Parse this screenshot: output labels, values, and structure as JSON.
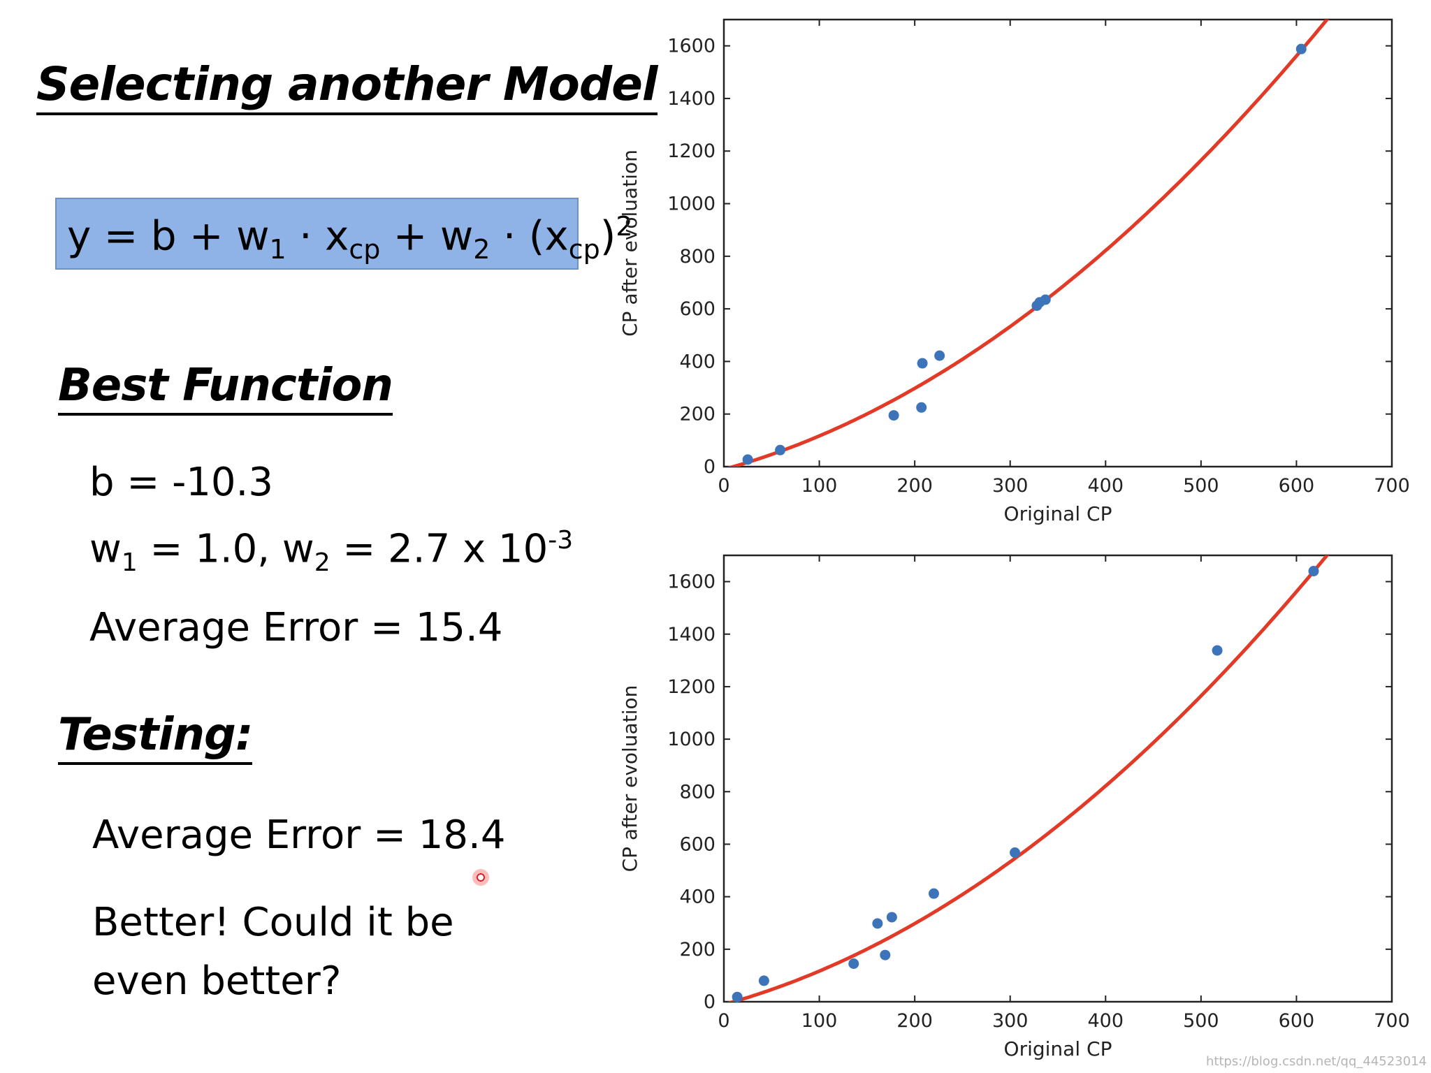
{
  "slide": {
    "title": "Selecting another Model",
    "formula": {
      "y": "y = b + w",
      "w1_sub": "1",
      "mid": " · x",
      "xcp_sub": "cp",
      "plus": " + w",
      "w2_sub": "2",
      "mid2": " · (x",
      "xcp2_sub": "cp",
      "close": ")",
      "sq": "2"
    },
    "best_function": {
      "heading": "Best Function",
      "b_line": "b = -10.3",
      "w_line": {
        "w1": "w",
        "w1_sub": "1",
        "w1_val": " = 1.0, w",
        "w2_sub": "2",
        "w2_val": " = 2.7 x 10",
        "exp": "-3"
      },
      "avg_error": "Average Error = 15.4"
    },
    "testing": {
      "heading": "Testing:",
      "avg_error": "Average Error = 18.4",
      "remark_line1": "Better! Could it be",
      "remark_line2": "even better?"
    },
    "watermark": "https://blog.csdn.net/qq_44523014"
  },
  "colors": {
    "point": "#3d74b9",
    "curve": "#e23a26",
    "axis": "#222222"
  },
  "chart_data": [
    {
      "type": "scatter",
      "title": "",
      "xlabel": "Original CP",
      "ylabel": "CP after evoluation",
      "xlim": [
        0,
        700
      ],
      "ylim": [
        0,
        1700
      ],
      "xticks": [
        0,
        100,
        200,
        300,
        400,
        500,
        600,
        700
      ],
      "yticks": [
        0,
        200,
        400,
        600,
        800,
        1000,
        1200,
        1400,
        1600
      ],
      "grid": false,
      "points": {
        "x": [
          25,
          59,
          178,
          207,
          208,
          226,
          328,
          331,
          337,
          605
        ],
        "y": [
          27,
          63,
          195,
          225,
          393,
          422,
          612,
          625,
          635,
          1588
        ]
      },
      "curve": {
        "b": -10.3,
        "w1": 1.0,
        "w2": 0.0027
      }
    },
    {
      "type": "scatter",
      "title": "",
      "xlabel": "Original CP",
      "ylabel": "CP after evoluation",
      "xlim": [
        0,
        700
      ],
      "ylim": [
        0,
        1700
      ],
      "xticks": [
        0,
        100,
        200,
        300,
        400,
        500,
        600,
        700
      ],
      "yticks": [
        0,
        200,
        400,
        600,
        800,
        1000,
        1200,
        1400,
        1600
      ],
      "grid": false,
      "points": {
        "x": [
          14,
          42,
          136,
          161,
          169,
          176,
          220,
          305,
          517,
          618
        ],
        "y": [
          18,
          80,
          145,
          298,
          178,
          322,
          412,
          568,
          1338,
          1640
        ]
      },
      "curve": {
        "b": -10.3,
        "w1": 1.0,
        "w2": 0.0027
      }
    }
  ]
}
